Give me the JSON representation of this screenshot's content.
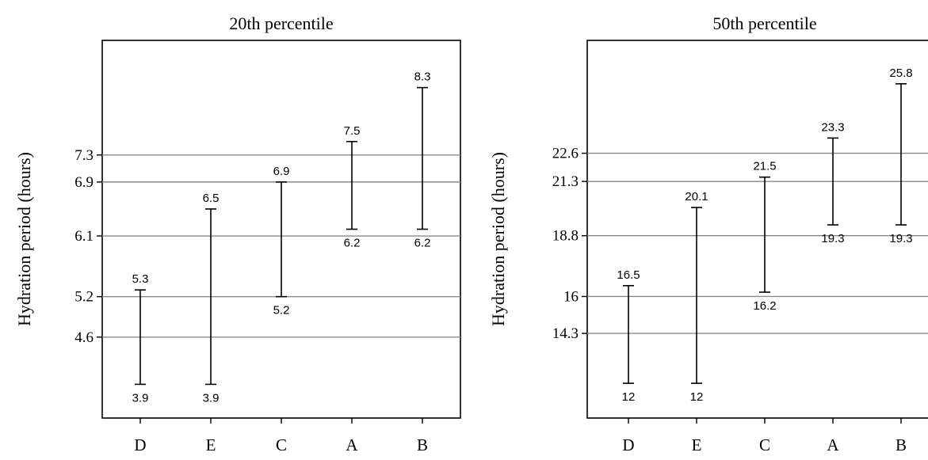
{
  "chart_data": [
    {
      "type": "errorbar",
      "title": "20th percentile",
      "ylabel": "Hydration period (hours)",
      "categories": [
        "D",
        "E",
        "C",
        "A",
        "B"
      ],
      "low": [
        3.9,
        3.9,
        5.2,
        6.2,
        6.2
      ],
      "high": [
        5.3,
        6.5,
        6.9,
        7.5,
        8.3
      ],
      "low_labels": [
        "3.9",
        "3.9",
        "5.2",
        "6.2",
        "6.2"
      ],
      "high_labels": [
        "5.3",
        "6.5",
        "6.9",
        "7.5",
        "8.3"
      ],
      "yticks": [
        4.6,
        5.2,
        6.1,
        6.9,
        7.3
      ],
      "ytick_labels": [
        "4.6",
        "5.2",
        "6.1",
        "6.9",
        "7.3"
      ],
      "reference_lines": [
        4.6,
        5.2,
        6.1,
        6.9,
        7.3
      ],
      "ylim": [
        3.4,
        9.0
      ],
      "reference_line_color": "#8a8a8a"
    },
    {
      "type": "errorbar",
      "title": "50th percentile",
      "ylabel": "Hydration period (hours)",
      "categories": [
        "D",
        "E",
        "C",
        "A",
        "B"
      ],
      "low": [
        12,
        12,
        16.2,
        19.3,
        19.3
      ],
      "high": [
        16.5,
        20.1,
        21.5,
        23.3,
        25.8
      ],
      "low_labels": [
        "12",
        "12",
        "16.2",
        "19.3",
        "19.3"
      ],
      "high_labels": [
        "16.5",
        "20.1",
        "21.5",
        "23.3",
        "25.8"
      ],
      "yticks": [
        14.3,
        16,
        18.8,
        21.3,
        22.6
      ],
      "ytick_labels": [
        "14.3",
        "16",
        "18.8",
        "21.3",
        "22.6"
      ],
      "reference_lines": [
        14.3,
        16,
        18.8,
        21.3,
        22.6
      ],
      "ylim": [
        10.4,
        27.8
      ],
      "reference_line_color": "#8a8a8a"
    }
  ]
}
